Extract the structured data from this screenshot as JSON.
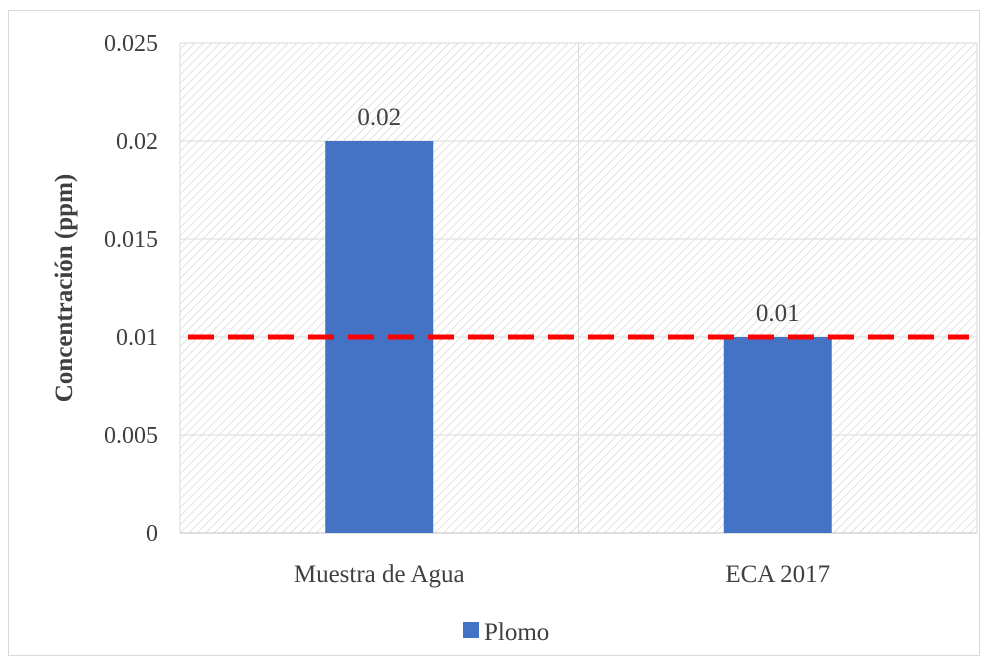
{
  "chart_data": {
    "type": "bar",
    "categories": [
      "Muestra de Agua",
      "ECA 2017"
    ],
    "series": [
      {
        "name": "Plomo",
        "values": [
          0.02,
          0.01
        ],
        "color": "#4472c4"
      }
    ],
    "data_labels": [
      "0.02",
      "0.01"
    ],
    "ylabel": "Concentración (ppm)",
    "xlabel": "",
    "ylim": [
      0,
      0.025
    ],
    "yticks": [
      0,
      0.005,
      0.01,
      0.015,
      0.02,
      0.025
    ],
    "ytick_labels": [
      "0",
      "0.005",
      "0.01",
      "0.015",
      "0.02",
      "0.025"
    ],
    "reference_line": {
      "value": 0.01,
      "color": "#ff0000",
      "style": "dashed"
    },
    "grid": true,
    "plot_background": "diagonal-hatch",
    "legend_position": "bottom"
  }
}
